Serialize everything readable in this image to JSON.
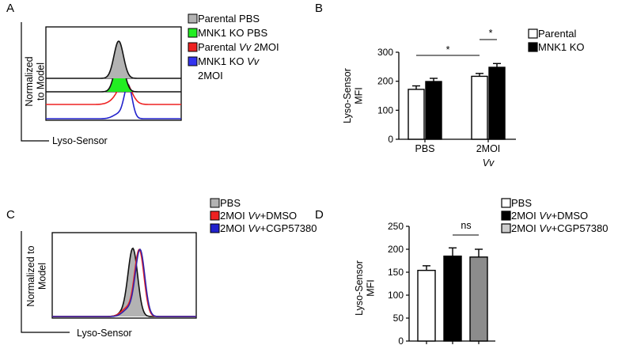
{
  "chart_data": [
    {
      "panel": "A",
      "type": "histogram",
      "ylabel_lines": [
        "Normalized",
        "to Model"
      ],
      "xlabel": "Lyso-Sensor",
      "legend": [
        {
          "label": "Parental PBS",
          "color": "#b3b3b3"
        },
        {
          "label": "MNK1 KO PBS",
          "color": "#22ee22"
        },
        {
          "label": "Parental Vv 2MOI",
          "prefix": "Parental ",
          "italic": "Vv",
          "suffix": " 2MOI",
          "color": "#ee2222"
        },
        {
          "label": "MNK1 KO Vv 2MOI",
          "prefix": "MNK1 KO ",
          "italic": "Vv",
          "line2": "2MOI",
          "color": "#3333ee"
        }
      ]
    },
    {
      "panel": "B",
      "type": "bar",
      "ylabel_lines": [
        "Lyso-Sensor",
        "MFI"
      ],
      "ylim": [
        0,
        300
      ],
      "yticks": [
        0,
        100,
        200,
        300
      ],
      "categories": [
        {
          "label": "PBS"
        },
        {
          "label": "2MOI",
          "italic": "Vv"
        }
      ],
      "series": [
        {
          "name": "Parental",
          "color": "#ffffff",
          "values": [
            172,
            217
          ],
          "errors": [
            12,
            10
          ]
        },
        {
          "name": "MNK1 KO",
          "color": "#000000",
          "values": [
            199,
            248
          ],
          "errors": [
            11,
            13
          ]
        }
      ],
      "significance": [
        {
          "label": "*",
          "between": "PBS Parental vs 2MOI Parental"
        },
        {
          "label": "*",
          "between": "2MOI Parental vs 2MOI MNK1 KO"
        }
      ]
    },
    {
      "panel": "C",
      "type": "histogram",
      "ylabel_lines": [
        "Normalized to",
        "Model"
      ],
      "xlabel": "Lyso-Sensor",
      "legend": [
        {
          "label": "PBS",
          "color": "#b3b3b3"
        },
        {
          "label": "2MOI Vv+DMSO",
          "prefix": "2MOI ",
          "italic": "Vv",
          "suffix": "+DMSO",
          "color": "#ee2222"
        },
        {
          "label": "2MOI Vv+CGP57380",
          "prefix": "2MOI ",
          "italic": "Vv",
          "suffix": "+CGP57380",
          "color": "#2222cc"
        }
      ]
    },
    {
      "panel": "D",
      "type": "bar",
      "ylabel_lines": [
        "Lyso-Sensor",
        "MFI"
      ],
      "ylim": [
        0,
        250
      ],
      "yticks": [
        0,
        50,
        100,
        150,
        200,
        250
      ],
      "categories": [
        {
          "label": ""
        }
      ],
      "series": [
        {
          "name": "PBS",
          "color": "#ffffff",
          "values": [
            154
          ],
          "errors": [
            10
          ]
        },
        {
          "name": "2MOI Vv+DMSO",
          "prefix": "2MOI ",
          "italic": "Vv",
          "suffix": "+DMSO",
          "color": "#000000",
          "values": [
            185
          ],
          "errors": [
            18
          ]
        },
        {
          "name": "2MOI Vv+CGP57380",
          "prefix": "2MOI ",
          "italic": "Vv",
          "suffix": "+CGP57380",
          "color": "#cccccc",
          "bar_color": "#8c8c8c",
          "values": [
            183
          ],
          "errors": [
            17
          ]
        }
      ],
      "significance": [
        {
          "label": "ns",
          "between": "2MOI Vv+DMSO vs 2MOI Vv+CGP57380"
        }
      ]
    }
  ]
}
